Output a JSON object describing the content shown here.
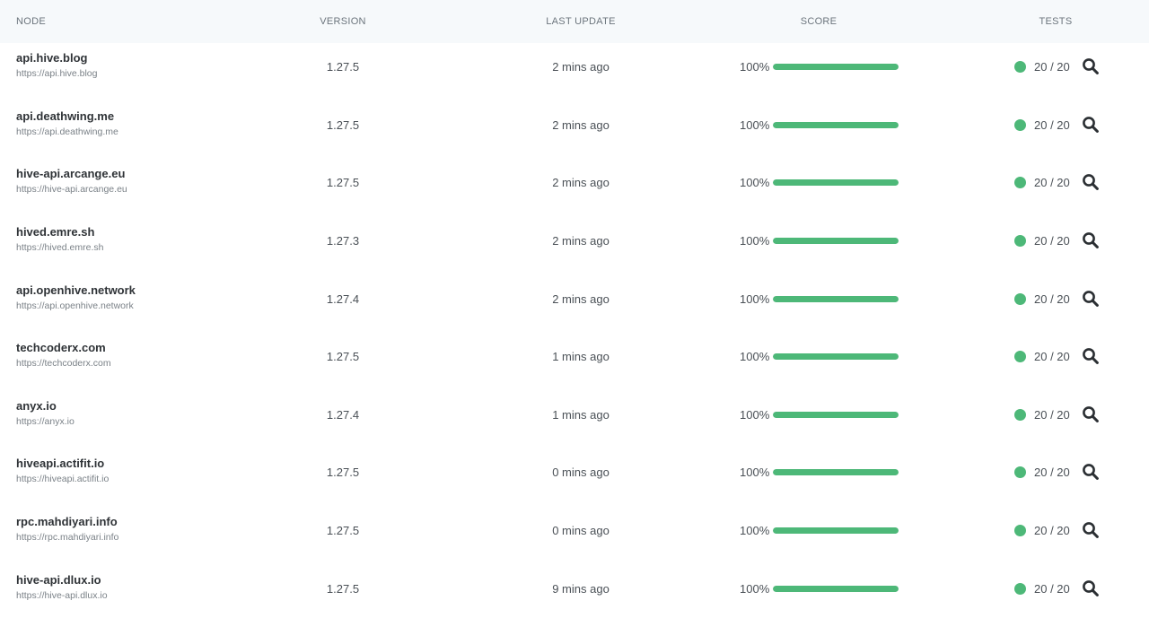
{
  "colors": {
    "score_bar": "#4db878",
    "status_ok": "#4db878",
    "header_bg": "#f6f9fb",
    "icon": "#2b2f33"
  },
  "header": {
    "node": "NODE",
    "version": "VERSION",
    "last_update": "LAST UPDATE",
    "score": "SCORE",
    "tests": "TESTS"
  },
  "rows": [
    {
      "name": "api.hive.blog",
      "url": "https://api.hive.blog",
      "version": "1.27.5",
      "last_update": "2 mins ago",
      "score_text": "100%",
      "score": 1.0,
      "tests": "20 / 20",
      "status": "ok",
      "action_icon": "search-icon"
    },
    {
      "name": "api.deathwing.me",
      "url": "https://api.deathwing.me",
      "version": "1.27.5",
      "last_update": "2 mins ago",
      "score_text": "100%",
      "score": 1.0,
      "tests": "20 / 20",
      "status": "ok",
      "action_icon": "search-icon"
    },
    {
      "name": "hive-api.arcange.eu",
      "url": "https://hive-api.arcange.eu",
      "version": "1.27.5",
      "last_update": "2 mins ago",
      "score_text": "100%",
      "score": 1.0,
      "tests": "20 / 20",
      "status": "ok",
      "action_icon": "search-icon"
    },
    {
      "name": "hived.emre.sh",
      "url": "https://hived.emre.sh",
      "version": "1.27.3",
      "last_update": "2 mins ago",
      "score_text": "100%",
      "score": 1.0,
      "tests": "20 / 20",
      "status": "ok",
      "action_icon": "search-icon"
    },
    {
      "name": "api.openhive.network",
      "url": "https://api.openhive.network",
      "version": "1.27.4",
      "last_update": "2 mins ago",
      "score_text": "100%",
      "score": 1.0,
      "tests": "20 / 20",
      "status": "ok",
      "action_icon": "search-icon"
    },
    {
      "name": "techcoderx.com",
      "url": "https://techcoderx.com",
      "version": "1.27.5",
      "last_update": "1 mins ago",
      "score_text": "100%",
      "score": 1.0,
      "tests": "20 / 20",
      "status": "ok",
      "action_icon": "search-icon"
    },
    {
      "name": "anyx.io",
      "url": "https://anyx.io",
      "version": "1.27.4",
      "last_update": "1 mins ago",
      "score_text": "100%",
      "score": 1.0,
      "tests": "20 / 20",
      "status": "ok",
      "action_icon": "search-icon"
    },
    {
      "name": "hiveapi.actifit.io",
      "url": "https://hiveapi.actifit.io",
      "version": "1.27.5",
      "last_update": "0 mins ago",
      "score_text": "100%",
      "score": 1.0,
      "tests": "20 / 20",
      "status": "ok",
      "action_icon": "search-icon"
    },
    {
      "name": "rpc.mahdiyari.info",
      "url": "https://rpc.mahdiyari.info",
      "version": "1.27.5",
      "last_update": "0 mins ago",
      "score_text": "100%",
      "score": 1.0,
      "tests": "20 / 20",
      "status": "ok",
      "action_icon": "search-icon"
    },
    {
      "name": "hive-api.dlux.io",
      "url": "https://hive-api.dlux.io",
      "version": "1.27.5",
      "last_update": "9 mins ago",
      "score_text": "100%",
      "score": 1.0,
      "tests": "20 / 20",
      "status": "ok",
      "action_icon": "search-icon"
    }
  ]
}
